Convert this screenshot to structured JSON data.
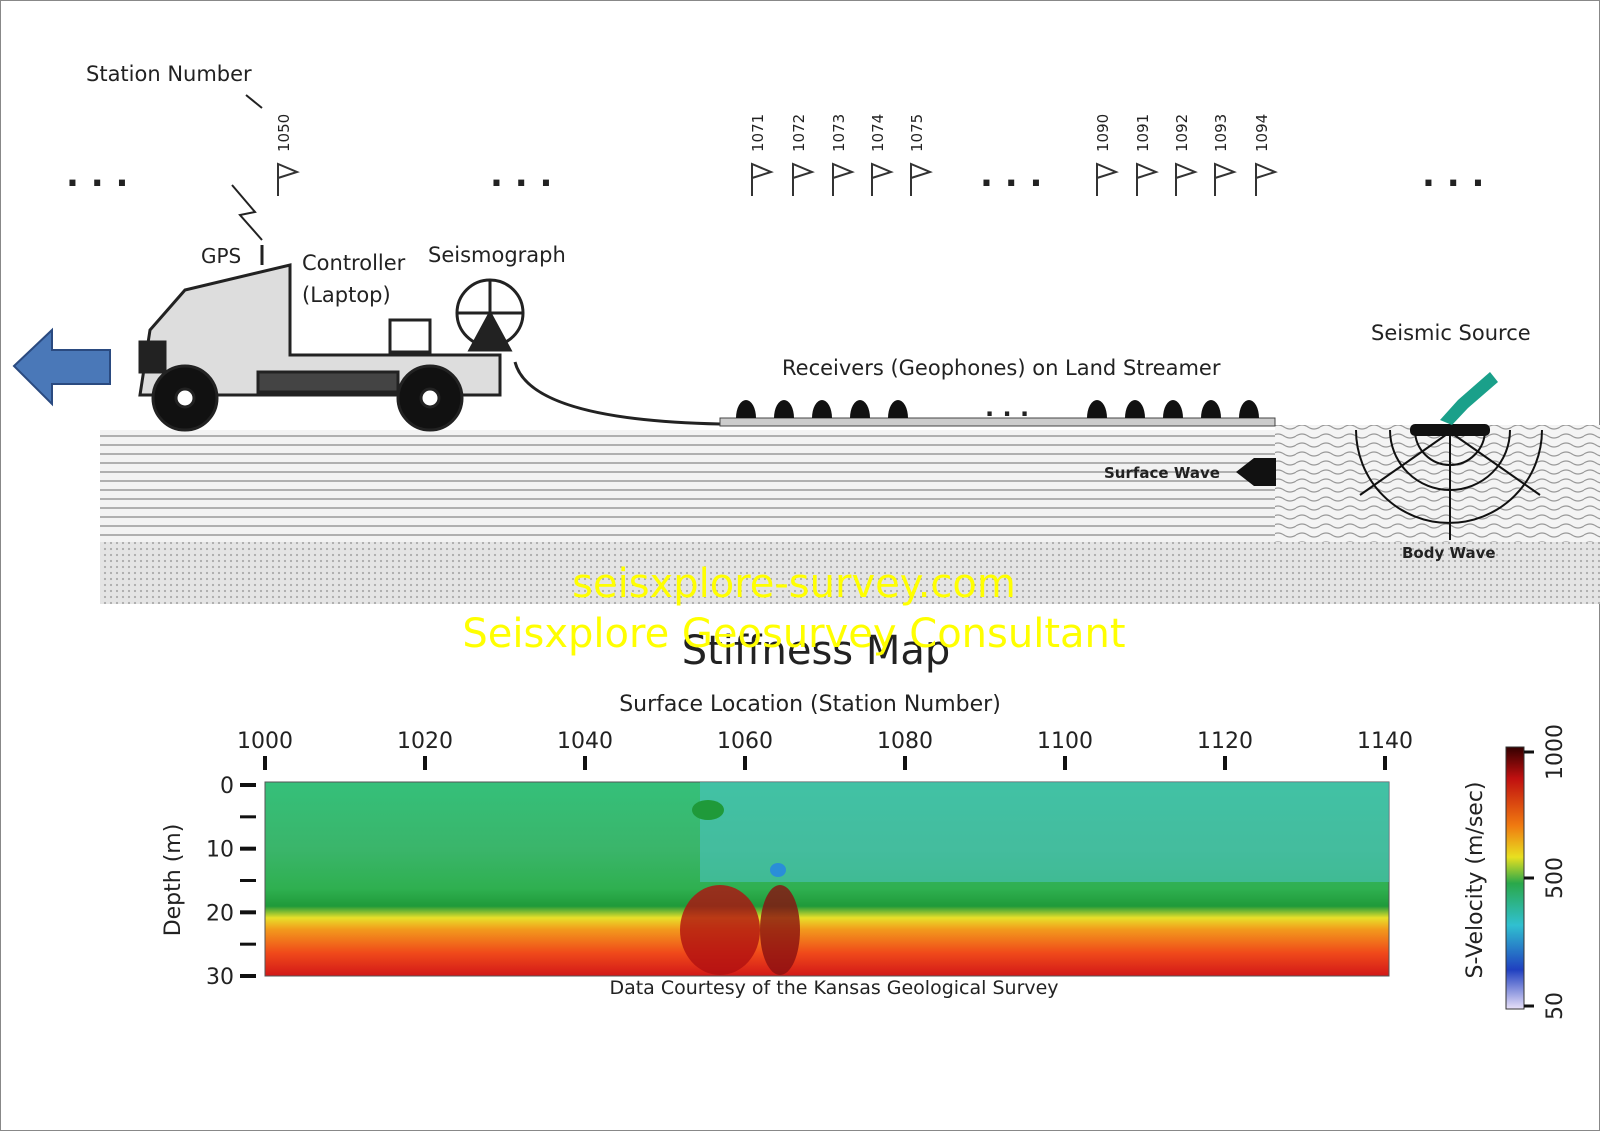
{
  "header": {
    "station_number_label": "Station Number",
    "stations": [
      "1050",
      "1071",
      "1072",
      "1073",
      "1074",
      "1075",
      "1090",
      "1091",
      "1092",
      "1093",
      "1094"
    ]
  },
  "labels": {
    "gps": "GPS",
    "controller": "Controller",
    "laptop": "(Laptop)",
    "seismograph": "Seismograph",
    "receivers": "Receivers (Geophones) on Land Streamer",
    "seismic_source": "Seismic Source",
    "surface_wave": "Surface Wave",
    "body_wave": "Body Wave"
  },
  "stiffness_map": {
    "title": "Stiffness Map",
    "x_label": "Surface Location (Station Number)",
    "x_ticks": [
      1000,
      1020,
      1040,
      1060,
      1080,
      1100,
      1120,
      1140
    ],
    "y_label": "Depth (m)",
    "y_ticks": [
      0,
      10,
      20,
      30
    ],
    "colorbar_label": "S-Velocity (m/sec)",
    "colorbar_ticks": [
      1000,
      500,
      50
    ],
    "credit": "Data Courtesy of the Kansas Geological Survey"
  },
  "watermark": [
    "seisxplore-survey.com",
    "Seisxplore Geosurvey Consultant"
  ]
}
